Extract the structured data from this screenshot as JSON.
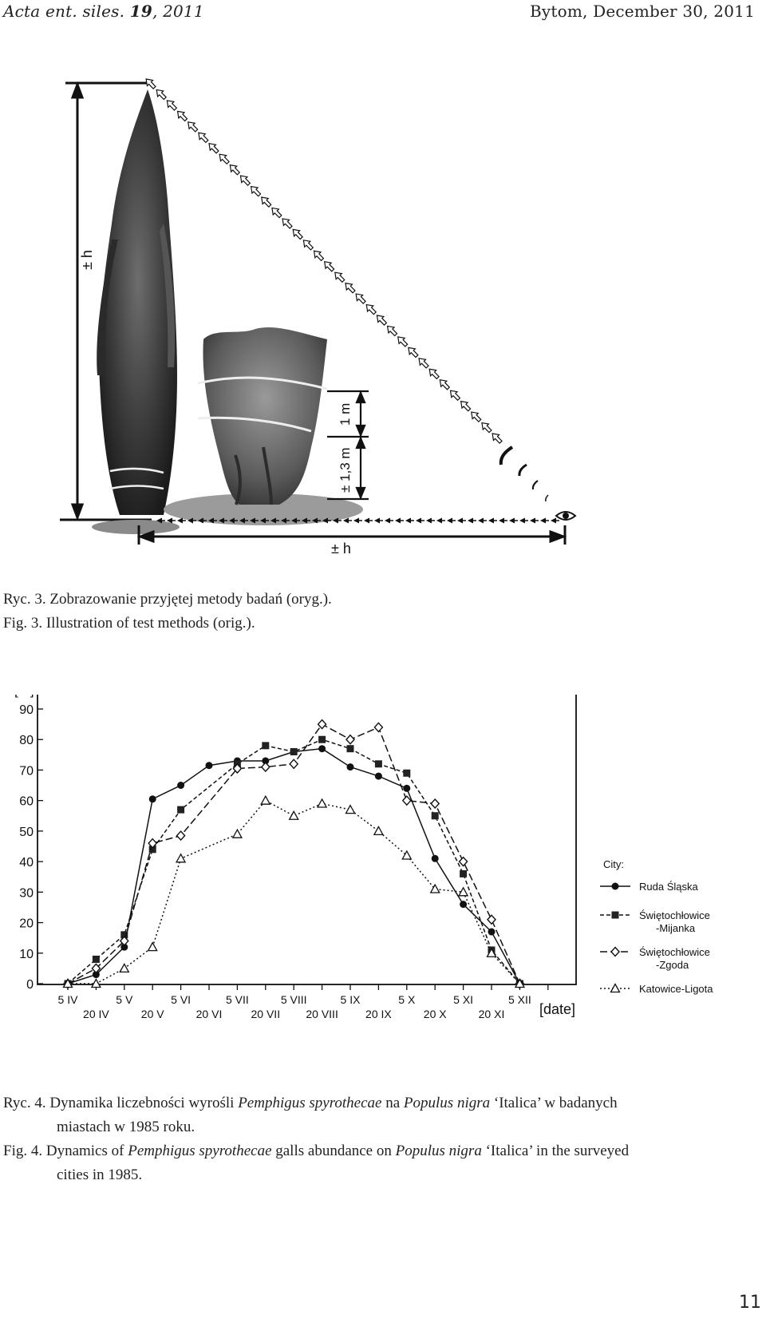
{
  "header": {
    "journal": "Acta ent. siles.",
    "volume": "19",
    "year": ", 2011",
    "place_date": "Bytom, December 30, 2011"
  },
  "figure3": {
    "label_height_vertical": "± h",
    "label_height_horizontal": "± h",
    "label_1m": "1 m",
    "label_13m": "± 1,3 m"
  },
  "caption3": {
    "pl": "Ryc. 3.  Zobrazowanie przyjętej metody badań (oryg.).",
    "en": "Fig.  3.  Illustration of test methods (orig.)."
  },
  "chart_data": {
    "type": "line",
    "ylabel": "[%]",
    "xlabel": "[date]",
    "ylim": [
      0,
      90
    ],
    "yticks": [
      "0",
      "10",
      "20",
      "30",
      "40",
      "50",
      "60",
      "70",
      "80",
      "90"
    ],
    "x_top": [
      "5 IV",
      "5 V",
      "5 VI",
      "5 VII",
      "5 VIII",
      "5 IX",
      "5 X",
      "5 XI",
      "5 XII"
    ],
    "x_bottom": [
      "20 IV",
      "20 V",
      "20 VI",
      "20 VII",
      "20 VIII",
      "20 IX",
      "20 X",
      "20 XI"
    ],
    "categories": [
      "5 IV",
      "20 IV",
      "5 V",
      "20 V",
      "5 VI",
      "20 VI",
      "5 VII",
      "20 VII",
      "5 VIII",
      "20 VIII",
      "5 IX",
      "20 IX",
      "5 X",
      "20 X",
      "5 XI",
      "20 XI",
      "5 XII"
    ],
    "legend_title": "City:",
    "legend_position": "right",
    "series": [
      {
        "name": "Ruda Śląska",
        "marker": "circle",
        "dash": "solid",
        "values": [
          0,
          3,
          12,
          60.5,
          65,
          71.5,
          73,
          73,
          76,
          77,
          71,
          68,
          64,
          41,
          26,
          17,
          0
        ]
      },
      {
        "name_line1": "Świętochłowice",
        "name_line2": "-Mijanka",
        "marker": "square",
        "dash": "dashed-fine",
        "values": [
          0,
          8,
          16,
          44,
          57,
          null,
          72,
          78,
          76,
          80,
          77,
          72,
          69,
          55,
          36,
          11,
          0
        ]
      },
      {
        "name_line1": "Świętochłowice",
        "name_line2": "-Zgoda",
        "marker": "diamond",
        "dash": "dashed-long",
        "values": [
          0,
          5,
          14,
          46,
          48.5,
          null,
          70.5,
          71,
          72,
          85,
          80,
          84,
          60,
          59,
          40,
          21,
          0
        ]
      },
      {
        "name": "Katowice-Ligota",
        "marker": "triangle",
        "dash": "dotted",
        "values": [
          0,
          0,
          5,
          12,
          41,
          null,
          49,
          60,
          55,
          59,
          57,
          50,
          42,
          31,
          30,
          10,
          0
        ]
      }
    ]
  },
  "caption4": {
    "pl_line1_a": "Ryc. 4.  Dynamika liczebności wyrośli ",
    "pl_line1_b": "Pemphigus spyrothecae",
    "pl_line1_c": " na ",
    "pl_line1_d": "Populus nigra",
    "pl_line1_e": " ‘Italica’ w badanych",
    "pl_line2": "miastach w 1985 roku.",
    "en_line1_a": "Fig.  4.  Dynamics of ",
    "en_line1_b": "Pemphigus spyrothecae",
    "en_line1_c": " galls abundance on ",
    "en_line1_d": "Populus nigra",
    "en_line1_e": " ‘Italica’ in the surveyed",
    "en_line2": "cities in 1985."
  },
  "page_number": "11"
}
